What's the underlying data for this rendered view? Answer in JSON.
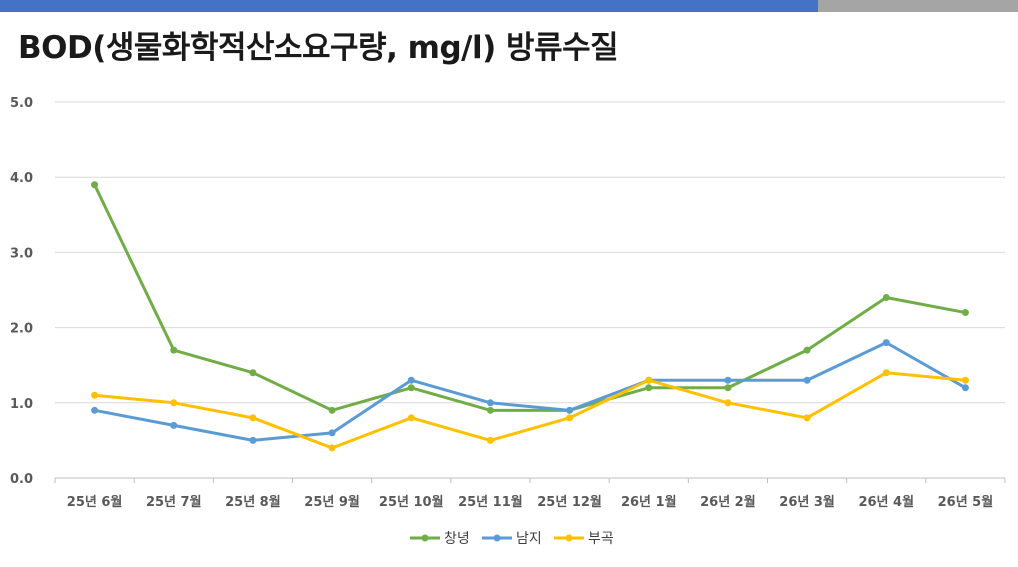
{
  "title": "BOD(생물화학적산소요구량, mg/l) 방류수질",
  "chart_data": {
    "type": "line",
    "title": "BOD(생물화학적산소요구량, mg/l) 방류수질",
    "categories": [
      "25년 6월",
      "25년 7월",
      "25년 8월",
      "25년 9월",
      "25년 10월",
      "25년 11월",
      "25년 12월",
      "26년 1월",
      "26년 2월",
      "26년 3월",
      "26년 4월",
      "26년 5월"
    ],
    "series": [
      {
        "name": "창녕",
        "color": "#70AD47",
        "values": [
          3.9,
          1.7,
          1.4,
          0.9,
          1.2,
          0.9,
          0.9,
          1.2,
          1.2,
          1.7,
          2.4,
          2.2
        ]
      },
      {
        "name": "남지",
        "color": "#5B9BD5",
        "values": [
          0.9,
          0.7,
          0.5,
          0.6,
          1.3,
          1.0,
          0.9,
          1.3,
          1.3,
          1.3,
          1.8,
          1.2
        ]
      },
      {
        "name": "부곡",
        "color": "#FFC000",
        "values": [
          1.1,
          1.0,
          0.8,
          0.4,
          0.8,
          0.5,
          0.8,
          1.3,
          1.0,
          0.8,
          1.4,
          1.3
        ]
      }
    ],
    "y_ticks": [
      "0.0",
      "1.0",
      "2.0",
      "3.0",
      "4.0",
      "5.0"
    ],
    "ylim": [
      0,
      5
    ],
    "grid": true,
    "legend_position": "bottom"
  }
}
